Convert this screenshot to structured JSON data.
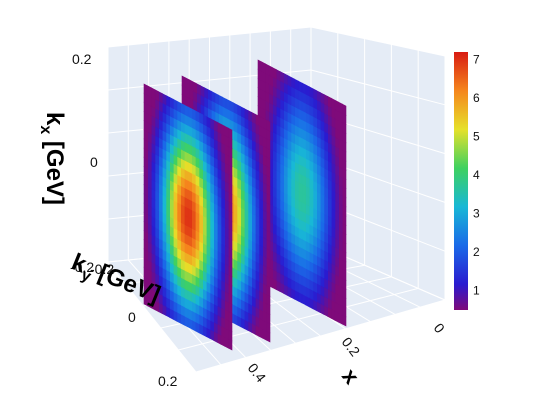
{
  "chart_data": {
    "type": "heatmap",
    "subtype": "3d-slices",
    "colorscale": "jet",
    "axes": {
      "x": {
        "label": "x",
        "ticks": [
          "0",
          "0.2",
          "0.4"
        ],
        "range": [
          0,
          0.5
        ]
      },
      "ky": {
        "label_main": "k",
        "label_sub": "y",
        "label_rest": " [GeV]",
        "ticks": [
          "-0.2",
          "0",
          "0.2"
        ],
        "range": [
          -0.25,
          0.25
        ]
      },
      "kx": {
        "label_main": "k",
        "label_sub": "x",
        "label_rest": " [GeV]",
        "ticks": [
          "0.2",
          "0",
          "-0.2"
        ],
        "range": [
          -0.25,
          0.25
        ]
      }
    },
    "colorbar": {
      "ticks": [
        "7",
        "6",
        "5",
        "4",
        "3",
        "2",
        "1"
      ],
      "range": [
        0.5,
        7.2
      ]
    },
    "slices": [
      {
        "x": 0.4,
        "peak": 7.0,
        "width_kx": 0.16,
        "width_ky": 0.14
      },
      {
        "x": 0.3,
        "peak": 6.4,
        "width_kx": 0.16,
        "width_ky": 0.14
      },
      {
        "x": 0.1,
        "peak": 3.7,
        "width_kx": 0.17,
        "width_ky": 0.15
      }
    ],
    "grid": true
  },
  "colors": {
    "scene_bg": "#e5ecf6",
    "grid": "#ffffff"
  }
}
